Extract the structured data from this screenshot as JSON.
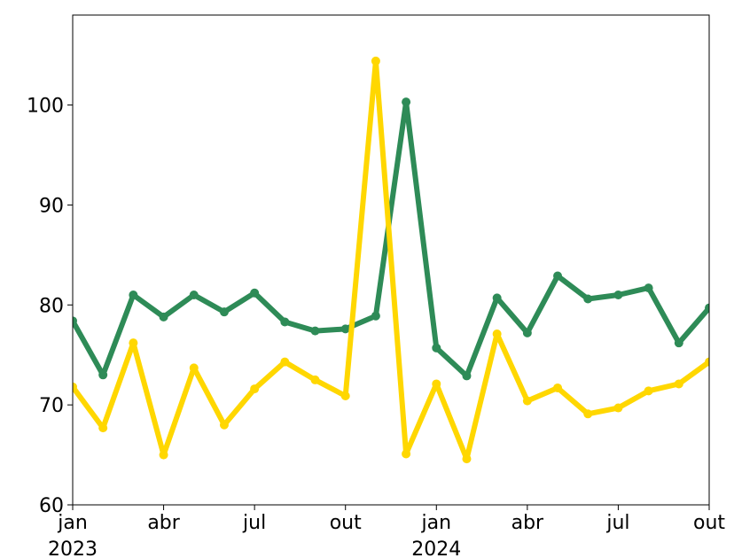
{
  "chart_data": {
    "type": "line",
    "x": [
      "2023-01",
      "2023-02",
      "2023-03",
      "2023-04",
      "2023-05",
      "2023-06",
      "2023-07",
      "2023-08",
      "2023-09",
      "2023-10",
      "2023-11",
      "2023-12",
      "2024-01",
      "2024-02",
      "2024-03",
      "2024-04",
      "2024-05",
      "2024-06",
      "2024-07",
      "2024-08",
      "2024-09",
      "2024-10"
    ],
    "series": [
      {
        "color": "#2e8b57",
        "values": [
          78.4,
          73.0,
          81.0,
          78.8,
          81.0,
          79.3,
          81.2,
          78.3,
          77.4,
          77.6,
          78.9,
          100.3,
          75.7,
          72.9,
          80.7,
          77.2,
          82.9,
          80.6,
          81.0,
          81.7,
          76.2,
          79.7
        ]
      },
      {
        "color": "#ffd700",
        "values": [
          71.8,
          67.7,
          76.2,
          65.0,
          73.7,
          68.0,
          71.6,
          74.3,
          72.5,
          70.9,
          104.4,
          65.1,
          72.1,
          64.6,
          77.1,
          70.4,
          71.7,
          69.1,
          69.7,
          71.4,
          72.1,
          74.3
        ]
      }
    ],
    "ylim": [
      60,
      109
    ],
    "yticks": [
      60,
      70,
      80,
      90,
      100
    ],
    "xticks": [
      {
        "value": "2023-01",
        "label": "jan",
        "year": "2023"
      },
      {
        "value": "2023-04",
        "label": "abr"
      },
      {
        "value": "2023-07",
        "label": "jul"
      },
      {
        "value": "2023-10",
        "label": "out"
      },
      {
        "value": "2024-01",
        "label": "jan",
        "year": "2024"
      },
      {
        "value": "2024-04",
        "label": "abr"
      },
      {
        "value": "2024-07",
        "label": "jul"
      },
      {
        "value": "2024-10",
        "label": "out"
      }
    ],
    "grid": false
  }
}
